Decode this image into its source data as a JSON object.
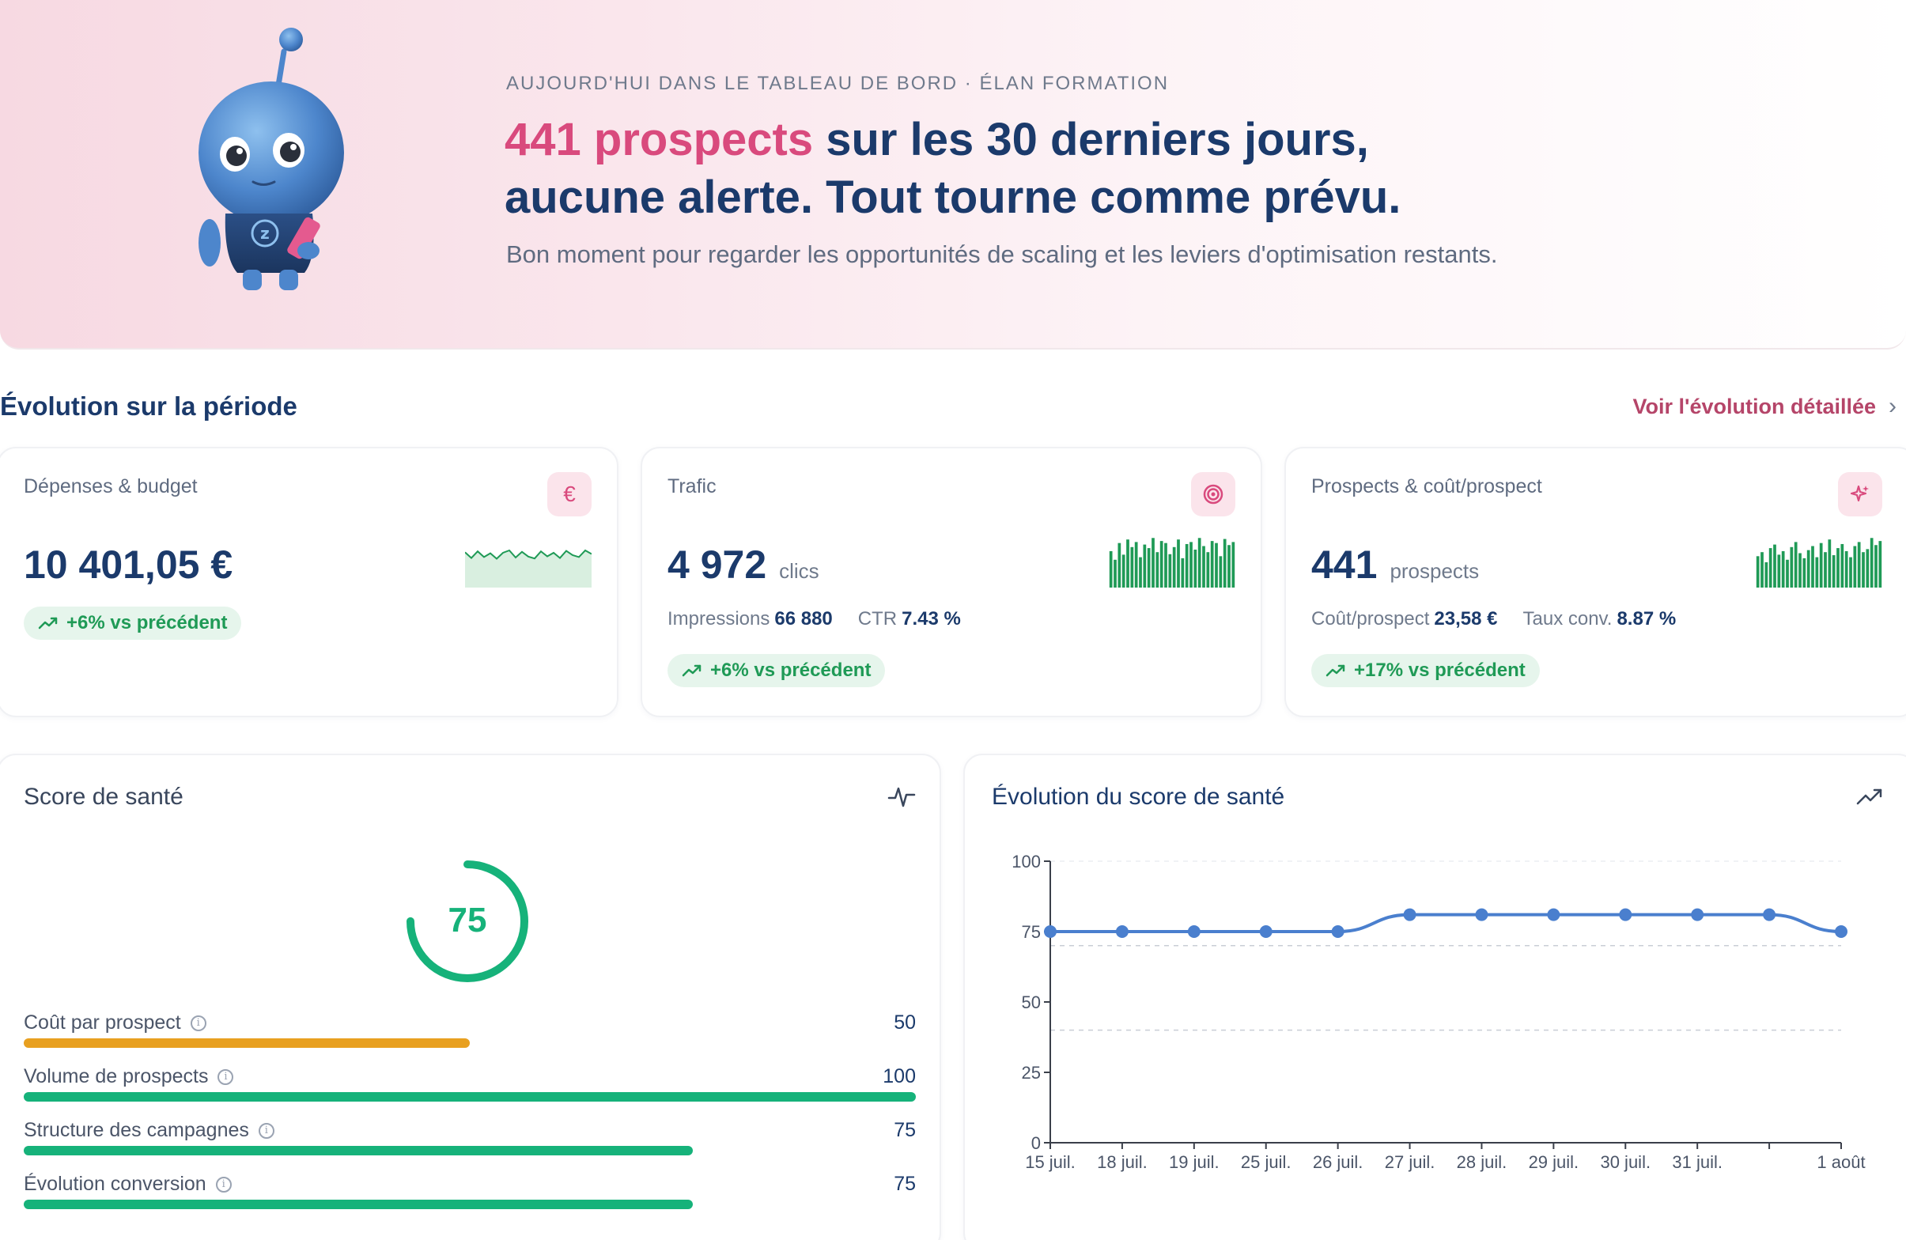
{
  "hero": {
    "eyebrow": "AUJOURD'HUI DANS LE TABLEAU DE BORD · ÉLAN FORMATION",
    "title_accent": "441 prospects",
    "title_line1_rest": " sur les 30 derniers jours,",
    "title_line2": "aucune alerte. Tout tourne comme prévu.",
    "subtitle": "Bon moment pour regarder les opportunités de scaling et les leviers d'optimisation restants.",
    "mascot_badge": "z"
  },
  "section": {
    "title": "Évolution sur la période",
    "link_label": "Voir l'évolution détaillée"
  },
  "colors": {
    "accent_pink": "#d94a7d",
    "navy": "#1b3a6b",
    "positive_green": "#1f9a56",
    "bar_green": "#16b27a",
    "bar_orange": "#e8a020",
    "line_blue": "#4a7fce"
  },
  "kpis": [
    {
      "label": "Dépenses & budget",
      "icon": "euro-icon",
      "icon_glyph": "€",
      "value": "10 401,05 €",
      "unit": "",
      "delta": "+6% vs précédent",
      "sparkline": [
        0.62,
        0.38,
        0.66,
        0.42,
        0.58,
        0.35,
        0.6,
        0.7,
        0.4,
        0.64,
        0.44,
        0.36,
        0.66,
        0.45,
        0.6,
        0.38,
        0.68,
        0.5,
        0.42,
        0.7,
        0.55
      ]
    },
    {
      "label": "Trafic",
      "icon": "target-icon",
      "value": "4 972",
      "unit": "clics",
      "meta": [
        {
          "label": "Impressions",
          "value": "66 880"
        },
        {
          "label": "CTR",
          "value": "7.43 %"
        }
      ],
      "delta": "+6% vs précédent",
      "bars": [
        0.72,
        0.55,
        0.88,
        0.65,
        0.95,
        0.8,
        0.9,
        0.6,
        0.85,
        0.78,
        0.98,
        0.7,
        0.92,
        0.88,
        0.66,
        0.8,
        0.95,
        0.58,
        0.86,
        0.9,
        0.75,
        0.98,
        0.82,
        0.7,
        0.92,
        0.88,
        0.62,
        0.96,
        0.84,
        0.9
      ]
    },
    {
      "label": "Prospects & coût/prospect",
      "icon": "sparkle-icon",
      "value": "441",
      "unit": "prospects",
      "meta": [
        {
          "label": "Coût/prospect",
          "value": "23,58 €"
        },
        {
          "label": "Taux conv.",
          "value": "8.87 %"
        }
      ],
      "delta": "+17% vs précédent",
      "bars": [
        0.62,
        0.7,
        0.5,
        0.78,
        0.85,
        0.65,
        0.72,
        0.55,
        0.8,
        0.9,
        0.68,
        0.58,
        0.74,
        0.82,
        0.6,
        0.88,
        0.7,
        0.95,
        0.64,
        0.78,
        0.86,
        0.72,
        0.6,
        0.82,
        0.9,
        0.7,
        0.76,
        0.98,
        0.84,
        0.92
      ]
    }
  ],
  "score": {
    "title": "Score de santé",
    "value": "75",
    "value_num": 75,
    "items": [
      {
        "label": "Coût par prospect",
        "value": "50",
        "num": 50,
        "color": "#e8a020"
      },
      {
        "label": "Volume de prospects",
        "value": "100",
        "num": 100,
        "color": "#16b27a"
      },
      {
        "label": "Structure des campagnes",
        "value": "75",
        "num": 75,
        "color": "#16b27a"
      },
      {
        "label": "Évolution conversion",
        "value": "75",
        "num": 75,
        "color": "#16b27a"
      }
    ]
  },
  "chart_data": {
    "type": "line",
    "title": "Évolution du score de santé",
    "xlabel": "",
    "ylabel": "",
    "categories": [
      "15 juil.",
      "18 juil.",
      "19 juil.",
      "25 juil.",
      "26 juil.",
      "27 juil.",
      "28 juil.",
      "29 juil.",
      "30 juil.",
      "31 juil.",
      "",
      "1 août"
    ],
    "series": [
      {
        "values": [
          75,
          75,
          75,
          75,
          75,
          81,
          81,
          81,
          81,
          81,
          81,
          75
        ]
      }
    ],
    "ylim": [
      0,
      100
    ],
    "yticks": [
      0,
      25,
      50,
      75,
      100
    ],
    "reference_lines": [
      70,
      40
    ],
    "grid": true
  }
}
